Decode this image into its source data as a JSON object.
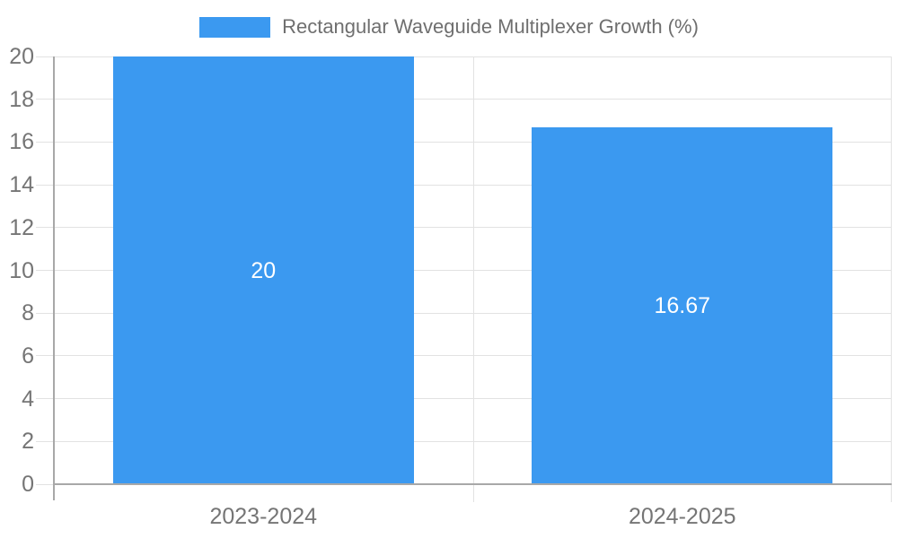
{
  "chart_data": {
    "type": "bar",
    "title": "Rectangular Waveguide Multiplexer Growth (%)",
    "legend": {
      "position": "top",
      "label": "Rectangular Waveguide Multiplexer Growth (%)"
    },
    "categories": [
      "2023-2024",
      "2024-2025"
    ],
    "series": [
      {
        "name": "Rectangular Waveguide Multiplexer Growth (%)",
        "values": [
          20,
          16.67
        ],
        "data_labels": [
          "20",
          "16.67"
        ]
      }
    ],
    "xlabel": "",
    "ylabel": "",
    "ylim": [
      0,
      20
    ],
    "yticks": [
      0,
      2,
      4,
      6,
      8,
      10,
      12,
      14,
      16,
      18,
      20
    ],
    "grid": true
  },
  "colors": {
    "bar": "#3B99F0",
    "grid_line": "#E2E2E2",
    "axis_line": "#A8A8A8",
    "tick_label": "#757575",
    "legend_text": "#6F6F6F",
    "bar_label": "#FFFFFF",
    "background": "#FFFFFF"
  }
}
